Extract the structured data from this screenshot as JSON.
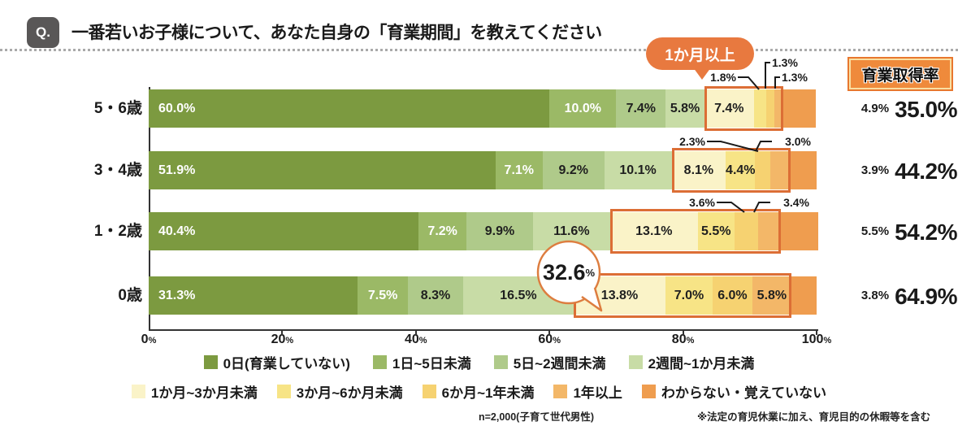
{
  "header": {
    "q_label": "Q.",
    "title": "一番若いお子様について、あなた自身の「育業期間」を教えてください",
    "over_month_callout": "1か月以上",
    "rate_header": "育業取得率"
  },
  "chart_data": {
    "type": "bar",
    "variant": "horizontal-stacked",
    "unit": "%",
    "xlim": [
      0,
      100
    ],
    "x_ticks": [
      "0%",
      "20%",
      "40%",
      "60%",
      "80%",
      "100%"
    ],
    "categories": [
      "5・6歳",
      "3・4歳",
      "1・2歳",
      "0歳"
    ],
    "series": [
      {
        "name": "0日(育業していない)",
        "color": "#7c9a40",
        "values": [
          60.0,
          51.9,
          40.4,
          31.3
        ]
      },
      {
        "name": "1日~5日未満",
        "color": "#9bb966",
        "values": [
          10.0,
          7.1,
          7.2,
          7.5
        ]
      },
      {
        "name": "5日~2週間未満",
        "color": "#afca8a",
        "values": [
          7.4,
          9.2,
          9.9,
          8.3
        ]
      },
      {
        "name": "2週間~1か月未満",
        "color": "#c8dca6",
        "values": [
          5.8,
          10.1,
          11.6,
          16.5
        ]
      },
      {
        "name": "1か月~3か月未満",
        "color": "#faf3c8",
        "values": [
          7.4,
          8.1,
          13.1,
          13.8
        ]
      },
      {
        "name": "3か月~6か月未満",
        "color": "#f7e486",
        "values": [
          1.8,
          4.4,
          5.5,
          7.0
        ]
      },
      {
        "name": "6か月~1年未満",
        "color": "#f6d271",
        "values": [
          1.3,
          2.3,
          3.6,
          6.0
        ]
      },
      {
        "name": "1年以上",
        "color": "#f3b768",
        "values": [
          1.3,
          3.0,
          3.4,
          5.8
        ]
      },
      {
        "name": "わからない・覚えていない",
        "color": "#ef9d4f",
        "values": [
          4.9,
          3.9,
          5.5,
          3.8
        ]
      }
    ],
    "acquisition_rate": {
      "label": "育業取得率",
      "values": [
        "35.0%",
        "44.2%",
        "54.2%",
        "64.9%"
      ]
    },
    "highlight": {
      "label": "1か月以上",
      "series_range": [
        4,
        7
      ],
      "border_color": "#dc6e35"
    },
    "bubble": {
      "value": "32.6",
      "unit": "%"
    },
    "legend_rows": [
      [
        0,
        1,
        2,
        3
      ],
      [
        4,
        5,
        6,
        7,
        8
      ]
    ]
  },
  "footer": {
    "n_note": "n=2,000(子育て世代男性)",
    "asterisk_note": "※法定の育児休業に加え、育児目的の休暇等を含む"
  }
}
